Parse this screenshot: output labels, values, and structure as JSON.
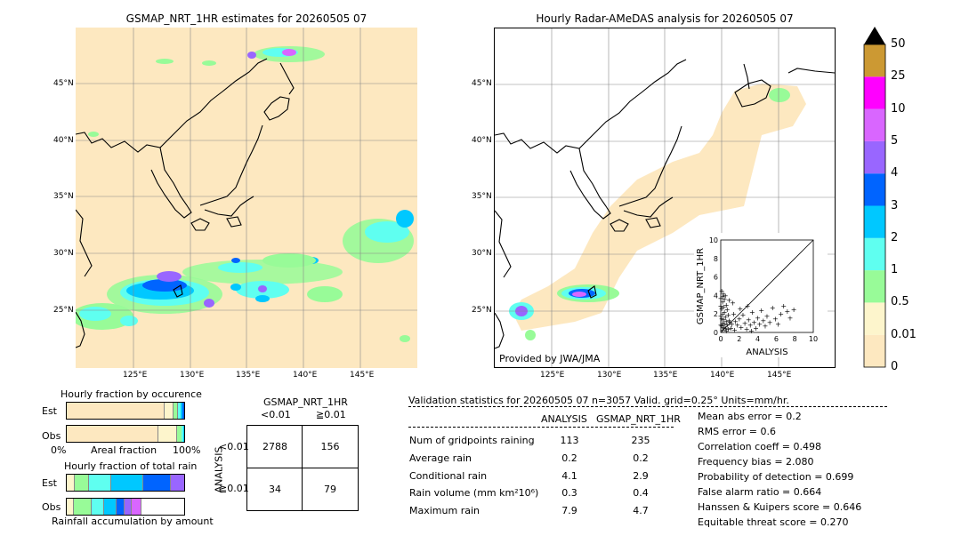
{
  "left_map": {
    "title": "GSMAP_NRT_1HR estimates for 20260505 07",
    "lat_labels": [
      "45°N",
      "40°N",
      "35°N",
      "30°N",
      "25°N"
    ],
    "lon_labels": [
      "125°E",
      "130°E",
      "135°E",
      "140°E",
      "145°E"
    ]
  },
  "right_map": {
    "title": "Hourly Radar-AMeDAS analysis for 20260505 07",
    "lat_labels": [
      "45°N",
      "40°N",
      "35°N",
      "30°N",
      "25°N"
    ],
    "lon_labels": [
      "125°E",
      "130°E",
      "135°E",
      "140°E",
      "145°E"
    ],
    "credit": "Provided by JWA/JMA"
  },
  "colorbar": {
    "levels": [
      "0",
      "0.01",
      "0.5",
      "1",
      "2",
      "3",
      "4",
      "5",
      "10",
      "25",
      "50"
    ],
    "colors": [
      "#fde8c0",
      "#fdf5cc",
      "#98fb98",
      "#5ffff0",
      "#00c8ff",
      "#0064ff",
      "#9966ff",
      "#d966ff",
      "#ff00ff",
      "#cc9933"
    ]
  },
  "scatter": {
    "xlabel": "ANALYSIS",
    "ylabel": "GSMAP_NRT_1HR",
    "ticks": [
      "0",
      "2",
      "4",
      "6",
      "8",
      "10"
    ]
  },
  "chart_data": {
    "type": "scatter",
    "xlabel": "ANALYSIS",
    "ylabel": "GSMAP_NRT_1HR",
    "xlim": [
      0,
      10
    ],
    "ylim": [
      0,
      10
    ],
    "points": [
      [
        0.1,
        4.5
      ],
      [
        0.2,
        3.9
      ],
      [
        0.3,
        4.2
      ],
      [
        0.4,
        3.6
      ],
      [
        0.5,
        4.0
      ],
      [
        0.2,
        3.3
      ],
      [
        0.6,
        3.0
      ],
      [
        0.3,
        2.8
      ],
      [
        0.1,
        2.6
      ],
      [
        0.7,
        2.5
      ],
      [
        0.4,
        2.2
      ],
      [
        0.2,
        2.0
      ],
      [
        0.8,
        1.9
      ],
      [
        0.5,
        1.7
      ],
      [
        0.1,
        1.5
      ],
      [
        0.3,
        1.4
      ],
      [
        0.9,
        1.3
      ],
      [
        0.6,
        1.2
      ],
      [
        0.2,
        1.0
      ],
      [
        1.0,
        1.1
      ],
      [
        0.4,
        0.9
      ],
      [
        0.7,
        0.8
      ],
      [
        0.1,
        0.7
      ],
      [
        0.3,
        0.6
      ],
      [
        1.2,
        0.9
      ],
      [
        0.5,
        0.5
      ],
      [
        0.8,
        0.4
      ],
      [
        0.2,
        0.3
      ],
      [
        1.1,
        0.5
      ],
      [
        0.6,
        0.2
      ],
      [
        1.4,
        2.0
      ],
      [
        1.6,
        1.2
      ],
      [
        1.8,
        0.8
      ],
      [
        2.0,
        1.5
      ],
      [
        2.2,
        0.6
      ],
      [
        2.4,
        1.9
      ],
      [
        2.6,
        1.0
      ],
      [
        2.8,
        0.4
      ],
      [
        3.0,
        1.4
      ],
      [
        3.2,
        0.8
      ],
      [
        3.4,
        2.2
      ],
      [
        3.6,
        1.1
      ],
      [
        3.8,
        0.5
      ],
      [
        4.0,
        1.6
      ],
      [
        4.2,
        0.9
      ],
      [
        4.4,
        2.4
      ],
      [
        4.6,
        1.3
      ],
      [
        4.8,
        0.7
      ],
      [
        5.0,
        1.8
      ],
      [
        5.3,
        1.1
      ],
      [
        5.6,
        2.7
      ],
      [
        5.9,
        1.5
      ],
      [
        6.2,
        0.9
      ],
      [
        6.5,
        2.0
      ],
      [
        6.8,
        2.9
      ],
      [
        7.2,
        2.3
      ],
      [
        7.5,
        1.6
      ],
      [
        7.9,
        2.5
      ],
      [
        1.3,
        3.2
      ],
      [
        0.9,
        3.5
      ],
      [
        1.5,
        0.3
      ],
      [
        2.1,
        2.6
      ],
      [
        2.9,
        2.9
      ],
      [
        3.3,
        0.2
      ],
      [
        0.0,
        0.8
      ],
      [
        0.0,
        1.8
      ],
      [
        0.0,
        2.9
      ],
      [
        0.0,
        3.7
      ]
    ]
  },
  "fraction_occurrence": {
    "title": "Hourly fraction by occurence",
    "row_labels": [
      "Est",
      "Obs"
    ],
    "xaxis_left": "0%",
    "xaxis_mid": "Areal fraction",
    "xaxis_right": "100%"
  },
  "fraction_total": {
    "title": "Hourly fraction of total rain",
    "row_labels": [
      "Est",
      "Obs"
    ],
    "xaxis_caption": "Rainfall accumulation by amount"
  },
  "contingency": {
    "title": "GSMAP_NRT_1HR",
    "col_lt": "<0.01",
    "col_ge": "≧0.01",
    "row_axis": "ANALYSIS",
    "row_lt": "<0.01",
    "row_ge": "≧0.01",
    "a": "2788",
    "b": "156",
    "c": "34",
    "d": "79"
  },
  "validation": {
    "header": "Validation statistics for 20260505 07  n=3057 Valid. grid=0.25° Units=mm/hr.",
    "col_analysis": "ANALYSIS",
    "col_gsmap": "GSMAP_NRT_1HR",
    "rows": [
      {
        "label": "Num of gridpoints raining",
        "analysis": "113",
        "gsmap": "235"
      },
      {
        "label": "Average rain",
        "analysis": "0.2",
        "gsmap": "0.2"
      },
      {
        "label": "Conditional rain",
        "analysis": "4.1",
        "gsmap": "2.9"
      },
      {
        "label": "Rain volume (mm km²10⁶)",
        "analysis": "0.3",
        "gsmap": "0.4"
      },
      {
        "label": "Maximum rain",
        "analysis": "7.9",
        "gsmap": "4.7"
      }
    ],
    "scores": [
      "Mean abs error =    0.2",
      "RMS error =    0.6",
      "Correlation coeff =  0.498",
      "Frequency bias =  2.080",
      "Probability of detection =  0.699",
      "False alarm ratio =  0.664",
      "Hanssen & Kuipers score =  0.646",
      "Equitable threat score =  0.270"
    ]
  }
}
